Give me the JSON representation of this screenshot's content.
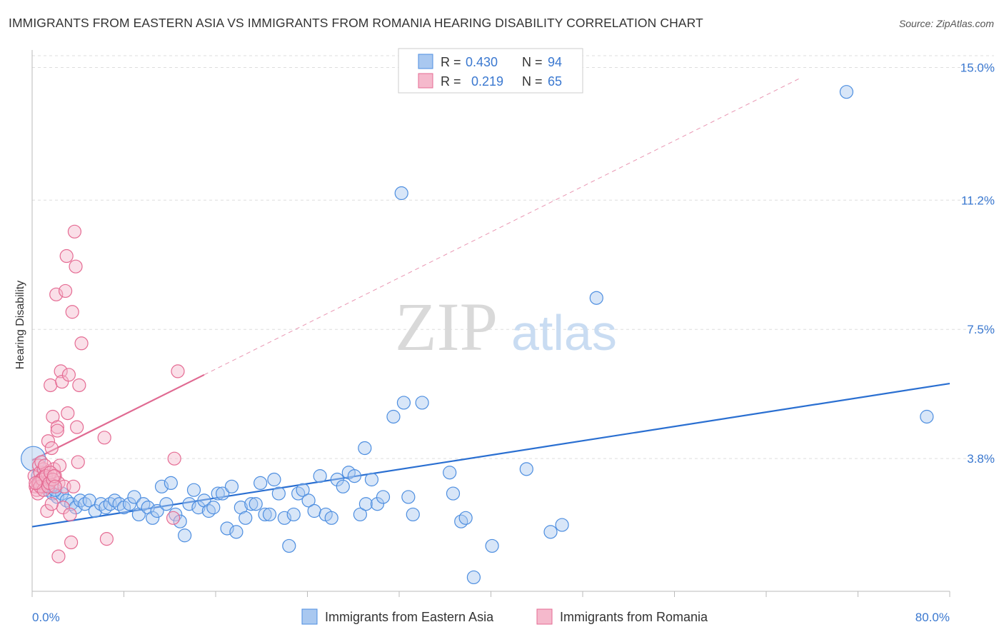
{
  "title": "IMMIGRANTS FROM EASTERN ASIA VS IMMIGRANTS FROM ROMANIA HEARING DISABILITY CORRELATION CHART",
  "source": "Source: ZipAtlas.com",
  "watermark": {
    "zip": "ZIP",
    "atlas": "atlas"
  },
  "colors": {
    "blue": "#4d8ee0",
    "blue_fill": "#a9c8f0",
    "blue_line": "#2a6fd1",
    "pink": "#e56b93",
    "pink_fill": "#f5b9cc",
    "pink_line": "#e06a92",
    "tick": "#3a78d0",
    "grid": "#dddddd"
  },
  "legend": {
    "rows": [
      {
        "r_label": "R =",
        "r_value": "0.430",
        "n_label": "N =",
        "n_value": "94"
      },
      {
        "r_label": "R =",
        "r_value": "0.219",
        "n_label": "N =",
        "n_value": "65"
      }
    ]
  },
  "chart_data": {
    "type": "scatter",
    "ylabel": "Hearing Disability",
    "xlim": [
      0,
      80
    ],
    "ylim": [
      0,
      15.5
    ],
    "x_tick_labels": [
      {
        "value": 0,
        "label": "0.0%"
      },
      {
        "value": 80,
        "label": "80.0%"
      }
    ],
    "y_ticks": [
      {
        "value": 3.8,
        "label": "3.8%"
      },
      {
        "value": 7.5,
        "label": "7.5%"
      },
      {
        "value": 11.2,
        "label": "11.2%"
      },
      {
        "value": 15.0,
        "label": "15.0%"
      }
    ],
    "series": [
      {
        "name": "Immigrants from Eastern Asia",
        "color": "#4d8ee0",
        "trend": {
          "x0": 0,
          "y0": 1.85,
          "x1": 80,
          "y1": 5.95
        },
        "points": [
          [
            0.1,
            3.8
          ],
          [
            0.5,
            3.3
          ],
          [
            0.8,
            3.2
          ],
          [
            1.1,
            3.1
          ],
          [
            1.4,
            2.9
          ],
          [
            1.8,
            2.8
          ],
          [
            2.2,
            2.7
          ],
          [
            2.6,
            2.8
          ],
          [
            3.0,
            2.6
          ],
          [
            3.4,
            2.5
          ],
          [
            3.8,
            2.4
          ],
          [
            4.2,
            2.6
          ],
          [
            4.6,
            2.5
          ],
          [
            5.0,
            2.6
          ],
          [
            5.5,
            2.3
          ],
          [
            6.0,
            2.5
          ],
          [
            6.4,
            2.4
          ],
          [
            6.8,
            2.5
          ],
          [
            7.2,
            2.6
          ],
          [
            7.6,
            2.5
          ],
          [
            8.0,
            2.4
          ],
          [
            8.5,
            2.5
          ],
          [
            8.9,
            2.7
          ],
          [
            9.3,
            2.2
          ],
          [
            9.7,
            2.5
          ],
          [
            10.1,
            2.4
          ],
          [
            10.5,
            2.1
          ],
          [
            10.9,
            2.3
          ],
          [
            11.3,
            3.0
          ],
          [
            11.7,
            2.5
          ],
          [
            12.1,
            3.1
          ],
          [
            12.5,
            2.2
          ],
          [
            12.9,
            2.0
          ],
          [
            13.3,
            1.6
          ],
          [
            13.7,
            2.5
          ],
          [
            14.1,
            2.9
          ],
          [
            14.5,
            2.4
          ],
          [
            15.0,
            2.6
          ],
          [
            15.4,
            2.3
          ],
          [
            15.8,
            2.4
          ],
          [
            16.2,
            2.8
          ],
          [
            16.6,
            2.8
          ],
          [
            17.0,
            1.8
          ],
          [
            17.4,
            3.0
          ],
          [
            17.8,
            1.7
          ],
          [
            18.2,
            2.4
          ],
          [
            18.6,
            2.1
          ],
          [
            19.1,
            2.5
          ],
          [
            19.5,
            2.5
          ],
          [
            19.9,
            3.1
          ],
          [
            20.3,
            2.2
          ],
          [
            20.7,
            2.2
          ],
          [
            21.1,
            3.2
          ],
          [
            21.5,
            2.8
          ],
          [
            22.0,
            2.1
          ],
          [
            22.4,
            1.3
          ],
          [
            22.8,
            2.2
          ],
          [
            23.2,
            2.8
          ],
          [
            23.6,
            2.9
          ],
          [
            24.1,
            2.6
          ],
          [
            24.6,
            2.3
          ],
          [
            25.1,
            3.3
          ],
          [
            25.6,
            2.2
          ],
          [
            26.1,
            2.1
          ],
          [
            26.6,
            3.2
          ],
          [
            27.1,
            3.0
          ],
          [
            27.6,
            3.4
          ],
          [
            28.1,
            3.3
          ],
          [
            28.6,
            2.2
          ],
          [
            29.1,
            2.5
          ],
          [
            29.6,
            3.2
          ],
          [
            30.1,
            2.5
          ],
          [
            30.6,
            2.7
          ],
          [
            31.5,
            5.0
          ],
          [
            32.2,
            11.4
          ],
          [
            32.4,
            5.4
          ],
          [
            32.8,
            2.7
          ],
          [
            33.2,
            2.2
          ],
          [
            34.0,
            5.4
          ],
          [
            36.4,
            3.4
          ],
          [
            36.7,
            2.8
          ],
          [
            37.4,
            2.0
          ],
          [
            37.8,
            2.1
          ],
          [
            38.5,
            0.4
          ],
          [
            40.1,
            1.3
          ],
          [
            43.1,
            3.5
          ],
          [
            45.2,
            1.7
          ],
          [
            46.2,
            1.9
          ],
          [
            49.2,
            8.4
          ],
          [
            29.0,
            4.1
          ],
          [
            71.0,
            14.3
          ],
          [
            78.0,
            5.0
          ],
          [
            1.0,
            3.0
          ],
          [
            2.0,
            2.9
          ]
        ]
      },
      {
        "name": "Immigrants from Romania",
        "color": "#e56b93",
        "trend": {
          "x0": 0,
          "y0": 3.75,
          "x1": 15,
          "y1": 6.2,
          "x_dash_end": 67,
          "y_dash_end": 14.7
        },
        "points": [
          [
            0.2,
            3.3
          ],
          [
            0.3,
            3.0
          ],
          [
            0.4,
            2.9
          ],
          [
            0.5,
            3.1
          ],
          [
            0.6,
            3.6
          ],
          [
            0.7,
            3.4
          ],
          [
            0.8,
            3.2
          ],
          [
            0.9,
            3.0
          ],
          [
            1.0,
            3.5
          ],
          [
            1.1,
            3.3
          ],
          [
            1.2,
            3.1
          ],
          [
            1.3,
            3.4
          ],
          [
            1.4,
            4.3
          ],
          [
            1.5,
            3.2
          ],
          [
            1.6,
            5.9
          ],
          [
            1.7,
            4.1
          ],
          [
            1.8,
            5.0
          ],
          [
            1.9,
            3.5
          ],
          [
            2.0,
            3.3
          ],
          [
            2.1,
            8.5
          ],
          [
            2.2,
            4.7
          ],
          [
            2.3,
            3.1
          ],
          [
            2.4,
            3.6
          ],
          [
            2.5,
            6.3
          ],
          [
            2.6,
            6.0
          ],
          [
            2.7,
            2.4
          ],
          [
            2.8,
            3.0
          ],
          [
            2.9,
            8.6
          ],
          [
            3.0,
            9.6
          ],
          [
            3.1,
            5.1
          ],
          [
            3.2,
            6.2
          ],
          [
            3.3,
            2.2
          ],
          [
            3.4,
            1.4
          ],
          [
            3.5,
            8.0
          ],
          [
            3.6,
            3.0
          ],
          [
            3.7,
            10.3
          ],
          [
            3.8,
            9.3
          ],
          [
            3.9,
            4.7
          ],
          [
            4.0,
            3.7
          ],
          [
            4.1,
            5.9
          ],
          [
            4.3,
            7.1
          ],
          [
            6.3,
            4.4
          ],
          [
            6.5,
            1.5
          ],
          [
            12.3,
            2.1
          ],
          [
            12.4,
            3.8
          ],
          [
            12.7,
            6.3
          ],
          [
            0.5,
            2.8
          ],
          [
            0.6,
            3.1
          ],
          [
            0.7,
            3.0
          ],
          [
            0.8,
            3.7
          ],
          [
            0.9,
            3.2
          ],
          [
            1.0,
            2.9
          ],
          [
            1.1,
            3.6
          ],
          [
            1.2,
            3.3
          ],
          [
            1.3,
            2.3
          ],
          [
            1.4,
            3.0
          ],
          [
            1.5,
            3.1
          ],
          [
            1.6,
            3.4
          ],
          [
            1.7,
            2.5
          ],
          [
            1.8,
            3.2
          ],
          [
            1.9,
            3.3
          ],
          [
            2.0,
            3.0
          ],
          [
            2.2,
            4.6
          ],
          [
            2.3,
            1.0
          ],
          [
            0.3,
            3.1
          ]
        ]
      }
    ]
  }
}
